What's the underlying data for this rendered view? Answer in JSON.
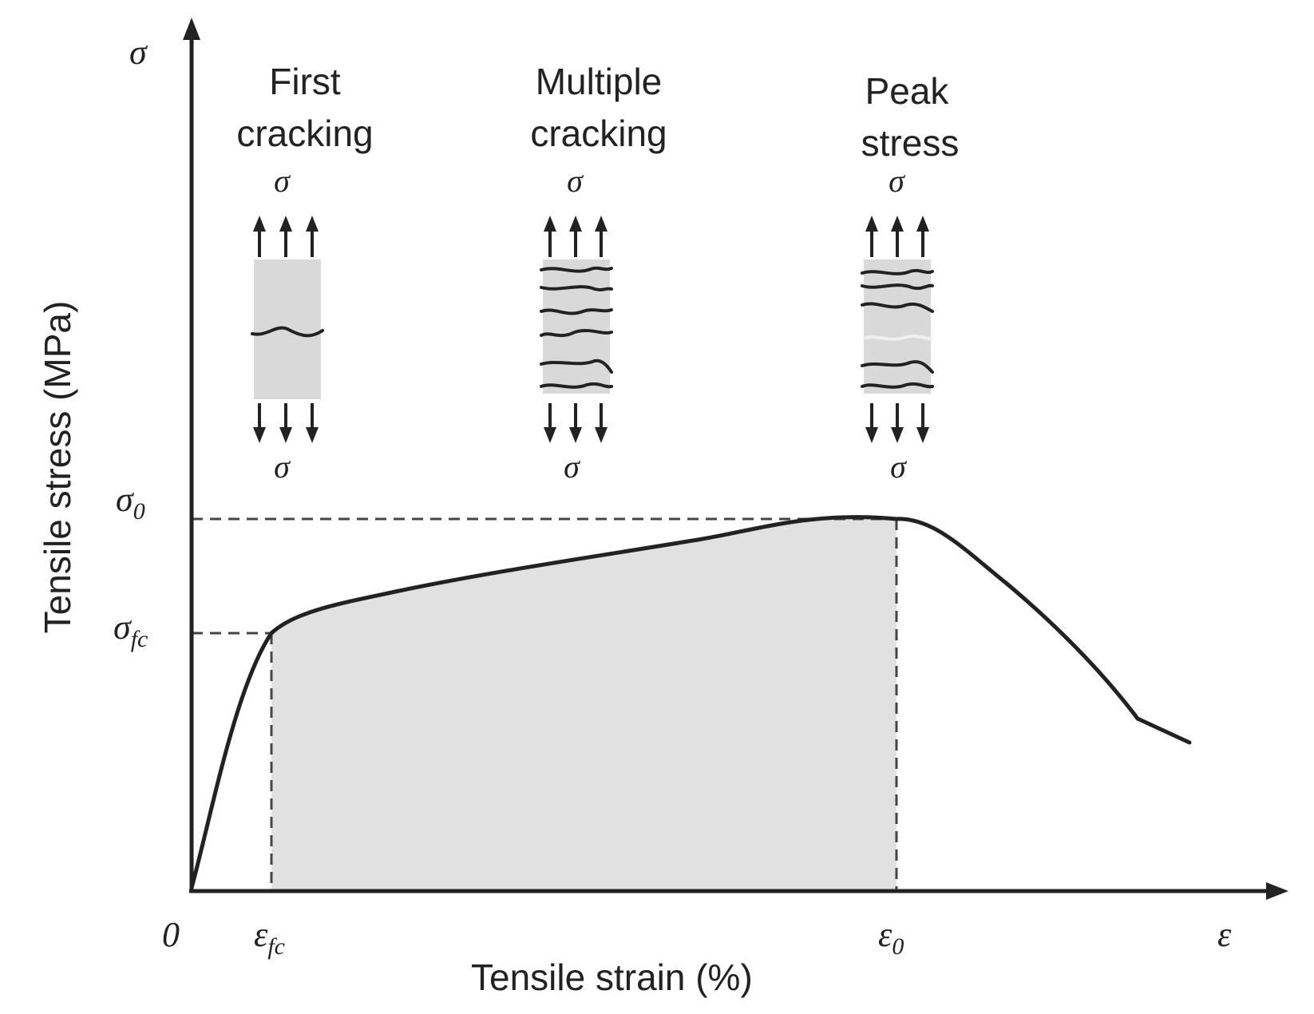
{
  "axes": {
    "y_symbol": "σ",
    "x_symbol": "ε",
    "origin": "0",
    "y_label": "Tensile stress (MPa)",
    "x_label": "Tensile strain (%)"
  },
  "y_ticks": {
    "peak": {
      "base": "σ",
      "sub": "0"
    },
    "first_crack": {
      "base": "σ",
      "sub": "fc"
    }
  },
  "x_ticks": {
    "first_crack": {
      "base": "ε",
      "sub": "fc"
    },
    "peak": {
      "base": "ε",
      "sub": "0"
    }
  },
  "stages": [
    {
      "line1": "First",
      "line2": "cracking",
      "top": "σ",
      "bottom": "σ"
    },
    {
      "line1": "Multiple",
      "line2": "cracking",
      "top": "σ",
      "bottom": "σ"
    },
    {
      "line1": "Peak",
      "line2": "stress",
      "top": "σ",
      "bottom": "σ"
    }
  ],
  "colors": {
    "curve": "#222222",
    "shaded_region": "#e1e1e1",
    "specimen": "#d9d9d9"
  }
}
